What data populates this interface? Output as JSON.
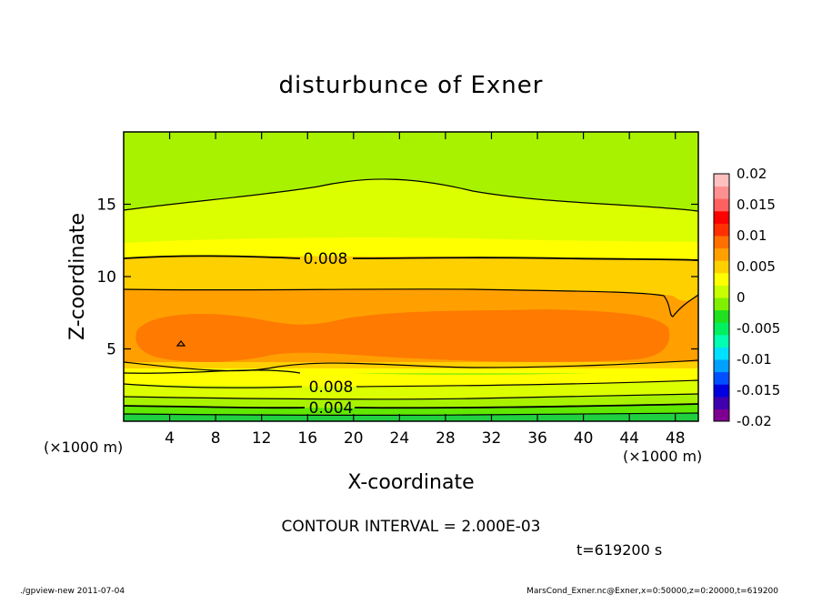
{
  "chart_data": {
    "type": "heatmap",
    "title": "disturbunce of Exner",
    "xlabel": "X-coordinate",
    "ylabel": "Z-coordinate",
    "x_unit_left": "(×1000 m)",
    "x_unit_right": "(×1000 m)",
    "xlim": [
      0,
      50
    ],
    "ylim": [
      0,
      20
    ],
    "x_ticks": [
      "4",
      "8",
      "12",
      "16",
      "20",
      "24",
      "28",
      "32",
      "36",
      "40",
      "44",
      "48"
    ],
    "y_ticks": [
      "5",
      "10",
      "15"
    ],
    "colorbar": {
      "range": [
        -0.02,
        0.02
      ],
      "tick_labels": [
        "0.02",
        "0.015",
        "0.01",
        "0.005",
        "0",
        "-0.005",
        "-0.01",
        "-0.015",
        "-0.02"
      ],
      "colors": [
        "#7f0090",
        "#3f00b0",
        "#0000e0",
        "#0050ff",
        "#00a0ff",
        "#00e0ff",
        "#00ffb0",
        "#00f060",
        "#20e020",
        "#80f000",
        "#c8ff00",
        "#ffff00",
        "#ffd000",
        "#ffa000",
        "#ff7000",
        "#ff3000",
        "#ff0000",
        "#ff6060",
        "#ff9090",
        "#ffc0c0"
      ]
    },
    "contour_labels": [
      "0.008",
      "0.008",
      "0.004"
    ],
    "field_description_levels": [
      {
        "z_range": [
          0,
          0.5
        ],
        "value": 0.001
      },
      {
        "z_range": [
          0.5,
          2
        ],
        "value": 0.004
      },
      {
        "z_range": [
          2,
          3.5
        ],
        "value": 0.008
      },
      {
        "z_range": [
          3.5,
          8.5
        ],
        "value": 0.0115
      },
      {
        "z_range": [
          8.5,
          11.5
        ],
        "value": 0.0085
      },
      {
        "z_range": [
          11.5,
          16
        ],
        "value": 0.0055
      },
      {
        "z_range": [
          16,
          20
        ],
        "value": 0.002
      }
    ],
    "contour_interval": "CONTOUR INTERVAL = 2.000E-03",
    "time": "t=619200 s"
  },
  "footer": {
    "left": "./gpview-new   2011-07-04",
    "right": "MarsCond_Exner.nc@Exner,x=0:50000,z=0:20000,t=619200"
  }
}
